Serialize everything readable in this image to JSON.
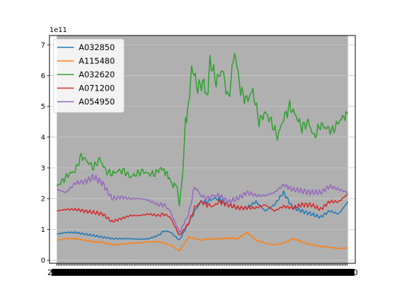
{
  "chart_data": {
    "type": "line",
    "scale_label": "1e11",
    "ylim": [
      -0.1,
      7.3
    ],
    "y_ticks": [
      0,
      1,
      2,
      3,
      4,
      5,
      6,
      7
    ],
    "y_tick_labels": [
      "0",
      "1",
      "2",
      "3",
      "4",
      "5",
      "6",
      "7"
    ],
    "xlim": [
      -12,
      487
    ],
    "x_tick_labels_note": "dense overlapping date tick labels (unreadable)",
    "grid": "horizontal",
    "legend_position": "top-left",
    "background": "#b0b0b0",
    "series": [
      {
        "name": "A032850",
        "color": "#1f77b4",
        "x": [
          0,
          15,
          30,
          45,
          60,
          75,
          90,
          105,
          120,
          135,
          150,
          165,
          175,
          185,
          200,
          215,
          225,
          235,
          245,
          255,
          265,
          280,
          295,
          310,
          325,
          340,
          355,
          370,
          385,
          400,
          415,
          430,
          445,
          460,
          475
        ],
        "values": [
          0.85,
          0.9,
          0.9,
          0.85,
          0.8,
          0.75,
          0.7,
          0.7,
          0.7,
          0.68,
          0.7,
          0.8,
          0.95,
          0.92,
          0.65,
          1.2,
          1.6,
          1.9,
          1.9,
          2.0,
          2.0,
          1.8,
          1.7,
          1.7,
          1.9,
          1.6,
          1.8,
          2.2,
          1.7,
          1.6,
          1.5,
          1.4,
          1.6,
          1.5,
          1.9
        ]
      },
      {
        "name": "A115480",
        "color": "#ff7f0e",
        "x": [
          0,
          15,
          30,
          45,
          60,
          75,
          90,
          105,
          120,
          135,
          150,
          165,
          175,
          185,
          200,
          215,
          225,
          235,
          245,
          255,
          265,
          280,
          295,
          310,
          325,
          340,
          355,
          370,
          385,
          400,
          415,
          430,
          445,
          460,
          475
        ],
        "values": [
          0.65,
          0.7,
          0.7,
          0.65,
          0.6,
          0.58,
          0.5,
          0.52,
          0.55,
          0.56,
          0.6,
          0.6,
          0.55,
          0.5,
          0.3,
          0.75,
          0.7,
          0.65,
          0.7,
          0.68,
          0.7,
          0.72,
          0.7,
          0.9,
          0.65,
          0.55,
          0.5,
          0.55,
          0.7,
          0.6,
          0.5,
          0.45,
          0.42,
          0.38,
          0.4
        ]
      },
      {
        "name": "A032620",
        "color": "#2ca02c",
        "x": [
          0,
          10,
          20,
          30,
          40,
          50,
          60,
          70,
          80,
          90,
          100,
          110,
          120,
          130,
          140,
          150,
          160,
          170,
          175,
          180,
          185,
          190,
          195,
          200,
          205,
          210,
          215,
          220,
          230,
          240,
          245,
          250,
          260,
          270,
          280,
          290,
          300,
          310,
          320,
          330,
          340,
          350,
          360,
          370,
          380,
          390,
          400,
          410,
          420,
          430,
          440,
          450,
          460,
          470,
          475
        ],
        "values": [
          2.4,
          2.6,
          2.8,
          2.9,
          3.4,
          3.2,
          3.0,
          3.3,
          2.9,
          2.8,
          2.9,
          2.9,
          2.7,
          2.8,
          2.9,
          2.8,
          2.8,
          3.0,
          2.9,
          2.8,
          2.6,
          2.4,
          2.5,
          1.8,
          2.7,
          4.5,
          5.0,
          6.3,
          5.6,
          5.8,
          5.2,
          6.5,
          5.8,
          6.2,
          5.2,
          6.8,
          5.5,
          5.2,
          5.5,
          4.5,
          4.8,
          4.5,
          4.0,
          4.6,
          5.0,
          4.7,
          4.3,
          4.5,
          4.0,
          4.4,
          4.3,
          4.2,
          4.5,
          4.7,
          4.8
        ]
      },
      {
        "name": "A071200",
        "color": "#d62728",
        "x": [
          0,
          15,
          30,
          45,
          60,
          75,
          90,
          105,
          120,
          135,
          150,
          165,
          175,
          185,
          200,
          215,
          225,
          235,
          245,
          255,
          265,
          280,
          295,
          310,
          325,
          340,
          355,
          370,
          385,
          400,
          415,
          430,
          445,
          460,
          475
        ],
        "values": [
          1.6,
          1.65,
          1.65,
          1.6,
          1.55,
          1.5,
          1.25,
          1.35,
          1.45,
          1.45,
          1.5,
          1.45,
          1.5,
          1.4,
          0.8,
          1.2,
          1.7,
          1.9,
          1.8,
          1.75,
          1.9,
          1.8,
          1.7,
          1.7,
          1.7,
          1.8,
          1.6,
          1.75,
          1.7,
          1.8,
          1.8,
          1.65,
          1.9,
          1.9,
          2.15
        ]
      },
      {
        "name": "A054950",
        "color": "#9467bd",
        "x": [
          0,
          15,
          30,
          45,
          60,
          75,
          90,
          105,
          120,
          135,
          150,
          165,
          175,
          185,
          200,
          215,
          225,
          235,
          245,
          255,
          265,
          280,
          295,
          310,
          325,
          340,
          355,
          370,
          385,
          400,
          415,
          430,
          445,
          460,
          475
        ],
        "values": [
          2.3,
          2.2,
          2.5,
          2.55,
          2.7,
          2.5,
          2.0,
          2.05,
          2.0,
          2.0,
          1.95,
          1.8,
          1.8,
          1.6,
          0.9,
          1.5,
          2.4,
          2.1,
          2.0,
          2.1,
          2.1,
          1.9,
          2.0,
          2.2,
          2.1,
          2.1,
          2.2,
          2.45,
          2.3,
          2.25,
          2.2,
          2.2,
          2.4,
          2.3,
          2.2
        ]
      }
    ]
  }
}
